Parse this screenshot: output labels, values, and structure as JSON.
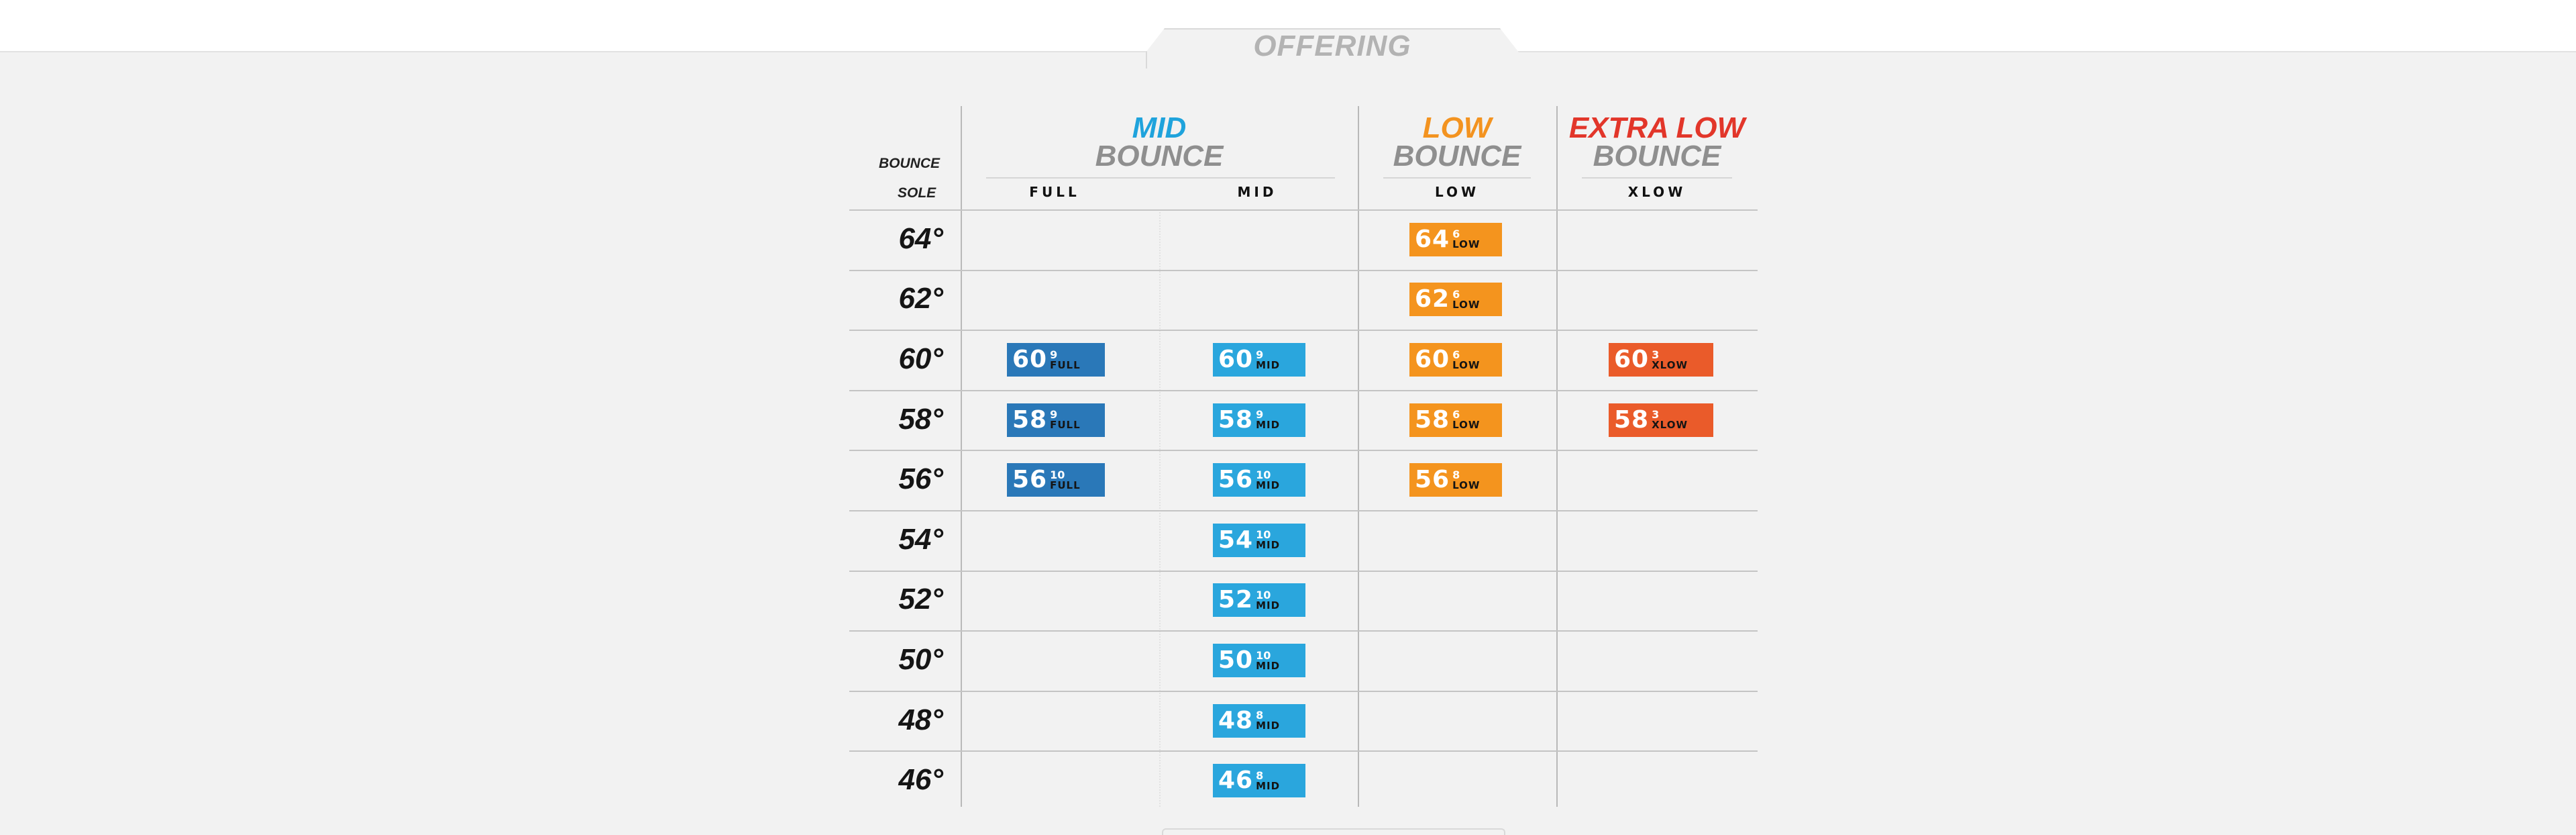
{
  "header": {
    "title": "OFFERING"
  },
  "colors": {
    "mid_full": "#2a78b8",
    "mid": "#2aa6dd",
    "low": "#f4941e",
    "xlow": "#ea5b2a",
    "mid_heading": "#1fa3dc",
    "low_heading": "#f39320",
    "xlow_heading": "#e2362a"
  },
  "labels": {
    "bounce": "BOUNCE",
    "sole": "SOLE"
  },
  "groups": {
    "mid": {
      "line1": "MID",
      "line2": "BOUNCE"
    },
    "low": {
      "line1": "LOW",
      "line2": "BOUNCE"
    },
    "xlow": {
      "line1": "EXTRA LOW",
      "line2": "BOUNCE"
    }
  },
  "columns": [
    "FULL",
    "MID",
    "LOW",
    "XLOW"
  ],
  "rows": [
    {
      "loft": "64°",
      "cells": [
        null,
        null,
        {
          "loft": "64",
          "bounce": "6",
          "grind": "LOW"
        },
        null
      ]
    },
    {
      "loft": "62°",
      "cells": [
        null,
        null,
        {
          "loft": "62",
          "bounce": "6",
          "grind": "LOW"
        },
        null
      ]
    },
    {
      "loft": "60°",
      "cells": [
        {
          "loft": "60",
          "bounce": "9",
          "grind": "FULL"
        },
        {
          "loft": "60",
          "bounce": "9",
          "grind": "MID"
        },
        {
          "loft": "60",
          "bounce": "6",
          "grind": "LOW"
        },
        {
          "loft": "60",
          "bounce": "3",
          "grind": "XLOW"
        }
      ]
    },
    {
      "loft": "58°",
      "cells": [
        {
          "loft": "58",
          "bounce": "9",
          "grind": "FULL"
        },
        {
          "loft": "58",
          "bounce": "9",
          "grind": "MID"
        },
        {
          "loft": "58",
          "bounce": "6",
          "grind": "LOW"
        },
        {
          "loft": "58",
          "bounce": "3",
          "grind": "XLOW"
        }
      ]
    },
    {
      "loft": "56°",
      "cells": [
        {
          "loft": "56",
          "bounce": "10",
          "grind": "FULL"
        },
        {
          "loft": "56",
          "bounce": "10",
          "grind": "MID"
        },
        {
          "loft": "56",
          "bounce": "8",
          "grind": "LOW"
        },
        null
      ]
    },
    {
      "loft": "54°",
      "cells": [
        null,
        {
          "loft": "54",
          "bounce": "10",
          "grind": "MID"
        },
        null,
        null
      ]
    },
    {
      "loft": "52°",
      "cells": [
        null,
        {
          "loft": "52",
          "bounce": "10",
          "grind": "MID"
        },
        null,
        null
      ]
    },
    {
      "loft": "50°",
      "cells": [
        null,
        {
          "loft": "50",
          "bounce": "10",
          "grind": "MID"
        },
        null,
        null
      ]
    },
    {
      "loft": "48°",
      "cells": [
        null,
        {
          "loft": "48",
          "bounce": "8",
          "grind": "MID"
        },
        null,
        null
      ]
    },
    {
      "loft": "46°",
      "cells": [
        null,
        {
          "loft": "46",
          "bounce": "8",
          "grind": "MID"
        },
        null,
        null
      ]
    }
  ]
}
